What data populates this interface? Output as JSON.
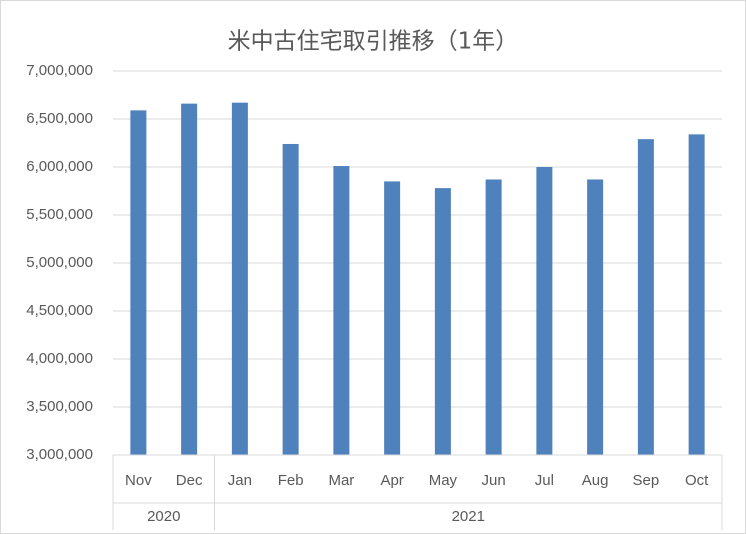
{
  "chart_data": {
    "type": "bar",
    "title": "米中古住宅取引推移（1年）",
    "categories": [
      "Nov",
      "Dec",
      "Jan",
      "Feb",
      "Mar",
      "Apr",
      "May",
      "Jun",
      "Jul",
      "Aug",
      "Sep",
      "Oct"
    ],
    "category_groups": [
      {
        "label": "2020",
        "count": 2
      },
      {
        "label": "2021",
        "count": 10
      }
    ],
    "values": [
      6590000,
      6660000,
      6670000,
      6240000,
      6010000,
      5850000,
      5780000,
      5870000,
      6000000,
      5870000,
      6290000,
      6340000
    ],
    "color": "#4f81bd",
    "ylim": [
      3000000,
      7000000
    ],
    "yticks": [
      {
        "value": 3000000,
        "label": "3,000,000"
      },
      {
        "value": 3500000,
        "label": "3,500,000"
      },
      {
        "value": 4000000,
        "label": "4,000,000"
      },
      {
        "value": 4500000,
        "label": "4,500,000"
      },
      {
        "value": 5000000,
        "label": "5,000,000"
      },
      {
        "value": 5500000,
        "label": "5,500,000"
      },
      {
        "value": 6000000,
        "label": "6,000,000"
      },
      {
        "value": 6500000,
        "label": "6,500,000"
      },
      {
        "value": 7000000,
        "label": "7,000,000"
      }
    ],
    "grid": true
  }
}
